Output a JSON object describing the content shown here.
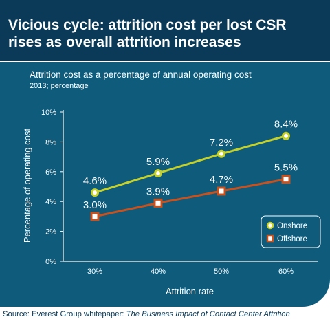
{
  "header": {
    "title_line1": "Vicious cycle: attrition cost per lost CSR",
    "title_line2": "rises as overall attrition increases"
  },
  "chart_data": {
    "type": "line",
    "title": "Attrition cost as a percentage of annual operating cost",
    "subtitle": "2013; percentage",
    "xlabel": "Attrition rate",
    "ylabel": "Percentage of operating cost",
    "categories": [
      "30%",
      "40%",
      "50%",
      "60%"
    ],
    "y_ticks": [
      "0%",
      "2%",
      "4%",
      "6%",
      "8%",
      "10%"
    ],
    "ylim": [
      0,
      10
    ],
    "grid": false,
    "legend_position": "bottom-right",
    "series": [
      {
        "name": "Onshore",
        "values": [
          4.6,
          5.9,
          7.2,
          8.4
        ],
        "labels": [
          "4.6%",
          "5.9%",
          "7.2%",
          "8.4%"
        ],
        "color": "#c5d12a",
        "marker": "circle"
      },
      {
        "name": "Offshore",
        "values": [
          3.0,
          3.9,
          4.7,
          5.5
        ],
        "labels": [
          "3.0%",
          "3.9%",
          "4.7%",
          "5.5%"
        ],
        "color": "#c8511e",
        "marker": "square"
      }
    ]
  },
  "source": {
    "prefix": "Source: Everest Group whitepaper: ",
    "title": "The Business Impact of Contact Center Attrition"
  }
}
